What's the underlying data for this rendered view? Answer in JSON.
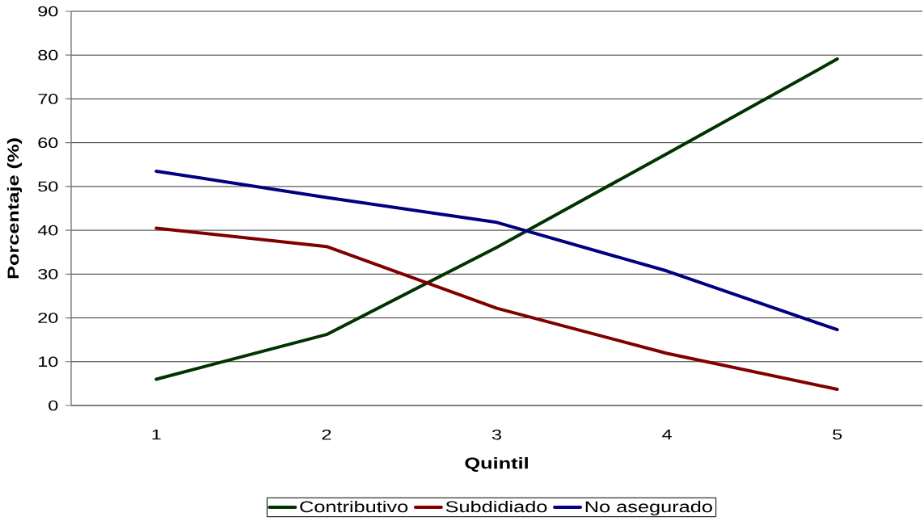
{
  "chart_data": {
    "type": "line",
    "xlabel": "Quintil",
    "ylabel": "Porcentaje (%)",
    "categories": [
      "1",
      "2",
      "3",
      "4",
      "5"
    ],
    "series": [
      {
        "name": "Contributivo",
        "color": "#003300",
        "values": [
          6.0,
          16.2,
          36.1,
          57.5,
          79.1
        ]
      },
      {
        "name": "Subdidiado",
        "color": "#800000",
        "values": [
          40.5,
          36.3,
          22.2,
          11.9,
          3.7
        ]
      },
      {
        "name": "No asegurado",
        "color": "#000080",
        "values": [
          53.5,
          47.5,
          41.8,
          30.7,
          17.3
        ]
      }
    ],
    "ylim": [
      0,
      90
    ],
    "yticks": [
      0,
      10,
      20,
      30,
      40,
      50,
      60,
      70,
      80,
      90
    ],
    "grid": "y",
    "legend": "bottom",
    "marker": "none",
    "line_style": "solid"
  }
}
